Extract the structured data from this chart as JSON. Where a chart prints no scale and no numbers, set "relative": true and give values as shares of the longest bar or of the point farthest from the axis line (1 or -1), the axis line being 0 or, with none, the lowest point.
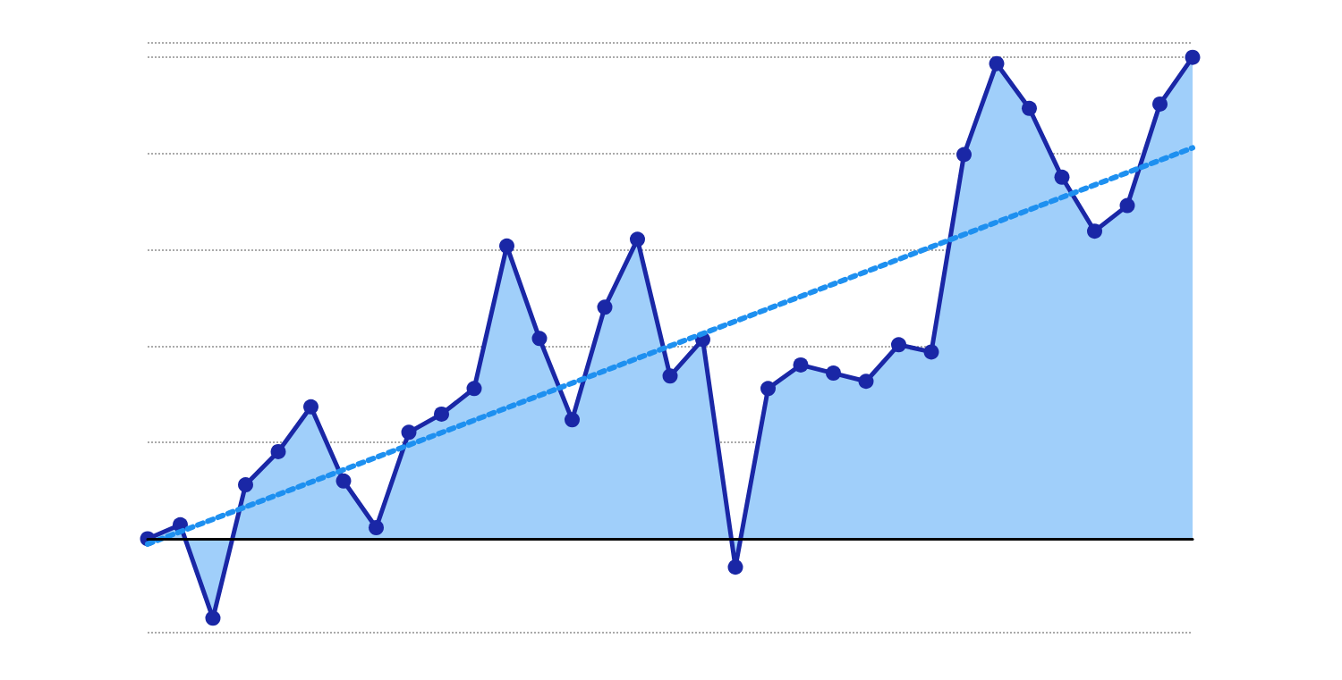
{
  "chart_data": {
    "type": "area",
    "relative": true,
    "grid": "y",
    "marker": "circle",
    "categories": [
      null,
      null,
      null,
      null,
      null,
      null,
      null,
      null,
      null,
      null,
      null,
      null,
      null,
      null,
      null,
      null,
      null,
      null,
      null,
      null,
      null,
      null,
      null,
      null,
      null,
      null,
      null,
      null,
      null,
      null,
      null,
      null,
      null
    ],
    "series": [
      {
        "type": "area",
        "color": "#1a27a6",
        "values": [
          0,
          0.029,
          -0.165,
          0.112,
          0.181,
          0.274,
          0.12,
          0.023,
          0.221,
          0.259,
          0.312,
          0.608,
          0.416,
          0.247,
          0.481,
          0.622,
          0.338,
          0.414,
          -0.059,
          0.312,
          0.361,
          0.344,
          0.327,
          0.403,
          0.388,
          0.798,
          0.987,
          0.894,
          0.751,
          0.639,
          0.692,
          0.903,
          1
        ]
      },
      {
        "type": "line",
        "color": "#1e90f0",
        "line_style": "dotted",
        "marker": "none",
        "values": [
          -0.011,
          null,
          null,
          null,
          null,
          null,
          null,
          null,
          null,
          null,
          null,
          null,
          null,
          null,
          null,
          null,
          null,
          null,
          null,
          null,
          null,
          null,
          null,
          null,
          null,
          null,
          null,
          null,
          null,
          null,
          null,
          null,
          0.812
        ]
      }
    ]
  }
}
